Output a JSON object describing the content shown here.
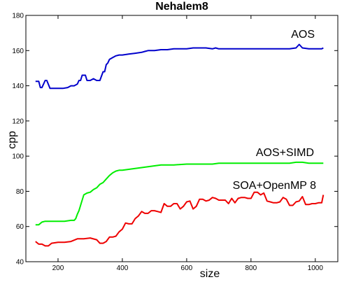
{
  "chart_data": {
    "type": "line",
    "title": "Nehalem8",
    "xlabel": "size",
    "ylabel": "cpp",
    "xlim": [
      100,
      1070
    ],
    "ylim": [
      40,
      180
    ],
    "xticks": [
      200,
      400,
      600,
      800,
      1000
    ],
    "yticks": [
      40,
      60,
      80,
      100,
      120,
      140,
      160,
      180
    ],
    "grid": false,
    "legend": "none; series labels placed next to lines",
    "series": [
      {
        "name": "AOS",
        "color": "#0000cc",
        "x": [
          130,
          140,
          145,
          150,
          160,
          165,
          175,
          180,
          190,
          200,
          215,
          230,
          240,
          250,
          260,
          265,
          270,
          275,
          285,
          290,
          300,
          310,
          320,
          330,
          340,
          345,
          350,
          355,
          360,
          370,
          380,
          390,
          400,
          420,
          440,
          460,
          470,
          480,
          500,
          520,
          540,
          560,
          580,
          600,
          620,
          640,
          660,
          680,
          690,
          700,
          720,
          740,
          760,
          780,
          800,
          820,
          840,
          860,
          880,
          900,
          920,
          940,
          950,
          960,
          980,
          1000,
          1020,
          1025
        ],
        "y": [
          142.5,
          142.5,
          139,
          139,
          143,
          143,
          138.5,
          138.5,
          138.5,
          138.5,
          138.5,
          139,
          140,
          140,
          141,
          143,
          143,
          146,
          146,
          143,
          143,
          144,
          143,
          143,
          148,
          148,
          152,
          153,
          155,
          156,
          157,
          157.5,
          157.5,
          158,
          158.5,
          159,
          159.5,
          160,
          160,
          160.5,
          160.5,
          161,
          161,
          161,
          161.5,
          161.5,
          161.5,
          161,
          161.5,
          161,
          161,
          161,
          161,
          161,
          161,
          161,
          161,
          161,
          161,
          161,
          161,
          161.5,
          163.5,
          161.5,
          161,
          161,
          161,
          161.5
        ]
      },
      {
        "name": "AOS+SIMD",
        "color": "#00ee00",
        "x": [
          130,
          140,
          150,
          160,
          180,
          200,
          220,
          240,
          250,
          255,
          260,
          265,
          270,
          275,
          280,
          290,
          300,
          310,
          320,
          330,
          340,
          350,
          360,
          370,
          380,
          390,
          400,
          420,
          440,
          460,
          480,
          500,
          520,
          560,
          600,
          640,
          680,
          700,
          720,
          760,
          800,
          840,
          880,
          920,
          940,
          960,
          980,
          1000,
          1025
        ],
        "y": [
          61,
          61,
          62.5,
          63,
          63,
          63,
          63,
          63.5,
          63.5,
          64.5,
          67,
          69,
          72,
          75,
          78,
          79,
          79.5,
          81,
          82,
          84,
          85,
          87,
          89,
          90.5,
          91.5,
          92,
          92,
          92.5,
          93,
          93.5,
          94,
          94.5,
          95,
          95,
          95.5,
          95.5,
          95.5,
          96,
          96,
          96,
          96,
          96,
          96,
          96,
          96.5,
          96.5,
          96,
          96,
          96
        ]
      },
      {
        "name": "SOA+OpenMP 8",
        "color": "#ee0000",
        "x": [
          130,
          140,
          150,
          160,
          170,
          180,
          200,
          220,
          240,
          260,
          280,
          300,
          320,
          330,
          340,
          350,
          360,
          370,
          380,
          390,
          400,
          410,
          420,
          430,
          440,
          450,
          460,
          470,
          480,
          490,
          500,
          510,
          520,
          530,
          540,
          550,
          560,
          570,
          580,
          590,
          600,
          610,
          620,
          630,
          640,
          650,
          660,
          670,
          680,
          690,
          700,
          710,
          720,
          730,
          740,
          750,
          760,
          770,
          780,
          790,
          800,
          810,
          820,
          830,
          840,
          850,
          860,
          870,
          880,
          890,
          900,
          910,
          920,
          930,
          940,
          950,
          960,
          970,
          980,
          990,
          1000,
          1010,
          1020,
          1025
        ],
        "y": [
          51.5,
          50,
          50,
          49,
          49,
          50.5,
          51,
          51,
          51.5,
          53,
          53,
          53.5,
          52.5,
          50.5,
          50.5,
          51.5,
          54,
          54,
          54.5,
          57,
          58.5,
          62,
          61.5,
          61.5,
          64.5,
          66,
          68.5,
          67.5,
          67.5,
          69,
          69,
          68.5,
          68,
          73,
          71.5,
          71.5,
          73,
          73,
          70,
          71.5,
          74,
          74.5,
          70,
          71.5,
          75.5,
          75.5,
          74.5,
          75,
          76.5,
          76,
          75,
          75,
          75,
          73,
          76,
          73.5,
          76,
          76.5,
          76.5,
          76,
          76,
          79.5,
          79.5,
          78,
          79,
          74.5,
          74,
          73.5,
          73.5,
          74,
          76.5,
          75.5,
          72,
          72,
          74,
          74.5,
          77,
          72.5,
          72.5,
          73,
          73,
          73.5,
          73.5,
          78
        ]
      }
    ],
    "annotations": [
      "AOS",
      "AOS+SIMD",
      "SOA+OpenMP 8"
    ]
  }
}
